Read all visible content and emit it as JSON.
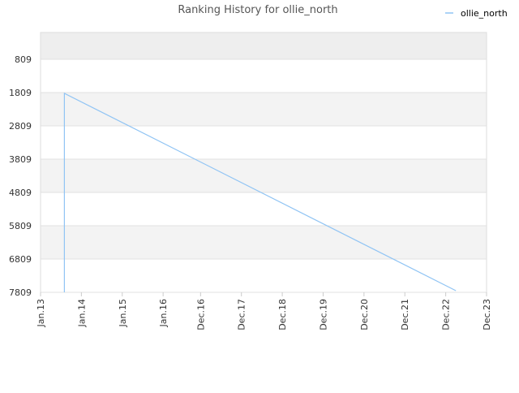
{
  "chart_data": {
    "type": "line",
    "title": "Ranking History for ollie_north",
    "x": [
      "2013-08",
      "2013-08",
      "2023-03"
    ],
    "series": [
      {
        "name": "ollie_north",
        "color": "#90c4f4",
        "values": [
          7809,
          1833,
          7760
        ]
      }
    ],
    "xlim": [
      "2013-01",
      "2023-12"
    ],
    "xticks": [
      {
        "value": "2013-01",
        "label": "Jan.13"
      },
      {
        "value": "2014-01",
        "label": "Jan.14"
      },
      {
        "value": "2015-01",
        "label": "Jan.15"
      },
      {
        "value": "2016-01",
        "label": "Jan.16"
      },
      {
        "value": "2016-12",
        "label": "Dec.16"
      },
      {
        "value": "2017-12",
        "label": "Dec.17"
      },
      {
        "value": "2018-12",
        "label": "Dec.18"
      },
      {
        "value": "2019-12",
        "label": "Dec.19"
      },
      {
        "value": "2020-12",
        "label": "Dec.20"
      },
      {
        "value": "2021-12",
        "label": "Dec.21"
      },
      {
        "value": "2022-12",
        "label": "Dec.22"
      },
      {
        "value": "2023-12",
        "label": "Dec.23"
      }
    ],
    "ylim": [
      7809,
      4
    ],
    "yticks": [
      809,
      1809,
      2809,
      3809,
      4809,
      5809,
      6809,
      7809
    ],
    "grid": true,
    "legend": "top-right"
  }
}
